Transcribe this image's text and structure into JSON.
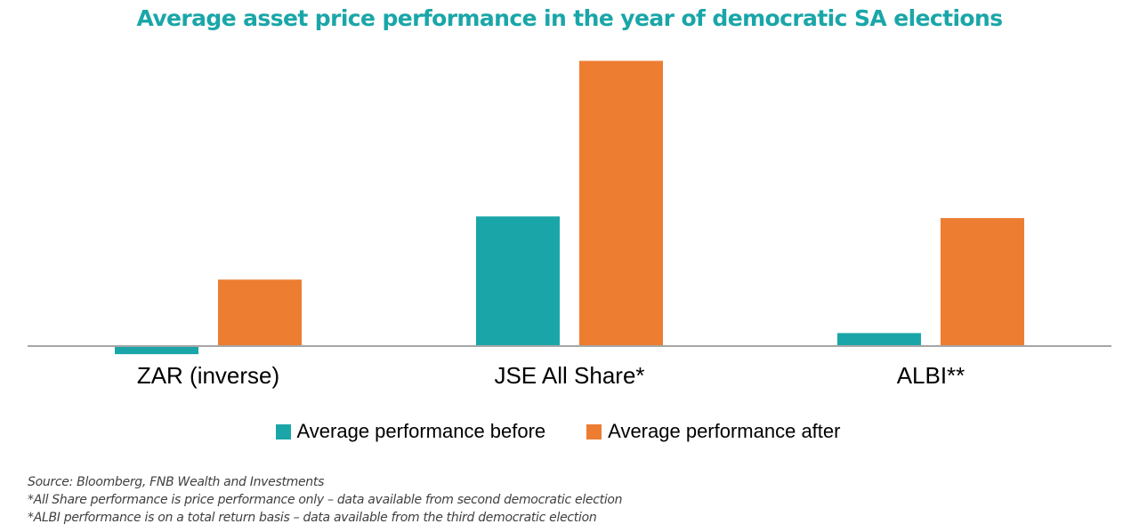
{
  "chart_data": {
    "type": "bar",
    "title": "Average asset price performance in the year of democratic SA elections",
    "categories": [
      "ZAR (inverse)",
      "JSE All Share*",
      "ALBI**"
    ],
    "series": [
      {
        "name": "Average performance before",
        "values": [
          -0.5,
          8.0,
          0.8
        ],
        "color": "#1aa6a8"
      },
      {
        "name": "Average performance after",
        "values": [
          4.1,
          17.6,
          7.9
        ],
        "color": "#ed7d31"
      }
    ],
    "ylim": [
      -1,
      18.5
    ],
    "grid": false,
    "legend_position": "bottom",
    "xlabel": "",
    "ylabel": ""
  },
  "footnotes": [
    "Source: Bloomberg, FNB Wealth and Investments",
    "*All Share performance is price performance only – data available from second democratic election",
    "*ALBI performance is on a total return basis – data available from the third democratic election"
  ]
}
